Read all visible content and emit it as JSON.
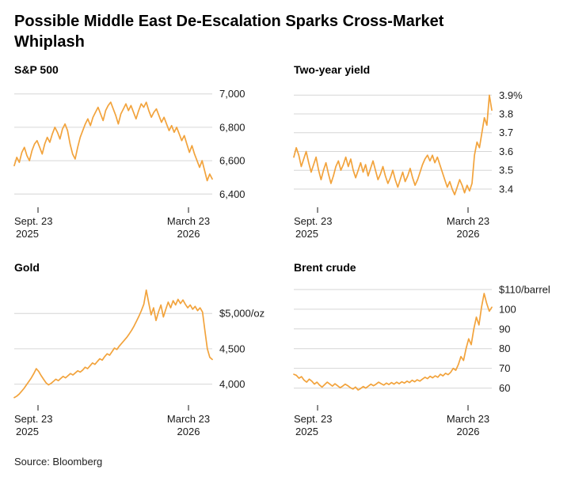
{
  "title": "Possible Middle East De-Escalation Sparks Cross-Market Whiplash",
  "source": "Source: Bloomberg",
  "colors": {
    "line": "#F2A33C",
    "grid": "#D6D6D6",
    "axis": "#1a1a1a"
  },
  "chart_data": [
    {
      "type": "line",
      "title": "S&P 500",
      "x_left": [
        "Sept. 23",
        "2025"
      ],
      "x_right": [
        "March 23",
        "2026"
      ],
      "ylim": [
        6340,
        7060
      ],
      "yticks": [
        {
          "v": 7000,
          "label": "7,000"
        },
        {
          "v": 6800,
          "label": "6,800"
        },
        {
          "v": 6600,
          "label": "6,600"
        },
        {
          "v": 6400,
          "label": "6,400"
        }
      ],
      "values": [
        6570,
        6620,
        6590,
        6650,
        6680,
        6630,
        6600,
        6660,
        6700,
        6720,
        6680,
        6640,
        6700,
        6740,
        6710,
        6760,
        6800,
        6770,
        6730,
        6790,
        6820,
        6780,
        6700,
        6640,
        6610,
        6680,
        6740,
        6780,
        6820,
        6850,
        6810,
        6860,
        6890,
        6920,
        6880,
        6840,
        6900,
        6930,
        6950,
        6910,
        6870,
        6820,
        6880,
        6910,
        6940,
        6900,
        6930,
        6890,
        6850,
        6900,
        6940,
        6920,
        6950,
        6900,
        6860,
        6890,
        6910,
        6870,
        6830,
        6860,
        6820,
        6780,
        6810,
        6770,
        6800,
        6760,
        6720,
        6750,
        6700,
        6650,
        6690,
        6640,
        6600,
        6560,
        6600,
        6540,
        6480,
        6520,
        6490
      ]
    },
    {
      "type": "line",
      "title": "Two-year yield",
      "x_left": [
        "Sept. 23",
        "2025"
      ],
      "x_right": [
        "March 23",
        "2026"
      ],
      "ylim": [
        3.32,
        3.96
      ],
      "yticks": [
        {
          "v": 3.9,
          "label": "3.9%"
        },
        {
          "v": 3.8,
          "label": "3.8"
        },
        {
          "v": 3.7,
          "label": "3.7"
        },
        {
          "v": 3.6,
          "label": "3.6"
        },
        {
          "v": 3.5,
          "label": "3.5"
        },
        {
          "v": 3.4,
          "label": "3.4"
        }
      ],
      "values": [
        3.57,
        3.62,
        3.58,
        3.52,
        3.56,
        3.6,
        3.54,
        3.49,
        3.53,
        3.57,
        3.5,
        3.45,
        3.5,
        3.54,
        3.48,
        3.43,
        3.47,
        3.52,
        3.55,
        3.5,
        3.53,
        3.57,
        3.52,
        3.56,
        3.5,
        3.46,
        3.5,
        3.54,
        3.49,
        3.53,
        3.47,
        3.51,
        3.55,
        3.5,
        3.45,
        3.48,
        3.52,
        3.47,
        3.43,
        3.46,
        3.5,
        3.45,
        3.41,
        3.45,
        3.49,
        3.44,
        3.47,
        3.51,
        3.46,
        3.42,
        3.45,
        3.49,
        3.53,
        3.56,
        3.58,
        3.55,
        3.58,
        3.54,
        3.57,
        3.53,
        3.49,
        3.45,
        3.41,
        3.44,
        3.4,
        3.37,
        3.41,
        3.45,
        3.42,
        3.38,
        3.42,
        3.39,
        3.43,
        3.58,
        3.65,
        3.62,
        3.7,
        3.78,
        3.74,
        3.9,
        3.82
      ]
    },
    {
      "type": "line",
      "title": "Gold",
      "x_left": [
        "Sept. 23",
        "2025"
      ],
      "x_right": [
        "March 23",
        "2026"
      ],
      "ylim": [
        3750,
        5450
      ],
      "yticks": [
        {
          "v": 5000,
          "label": "$5,000/oz"
        },
        {
          "v": 4500,
          "label": "4,500"
        },
        {
          "v": 4000,
          "label": "4,000"
        }
      ],
      "values": [
        3810,
        3830,
        3860,
        3900,
        3940,
        3990,
        4040,
        4090,
        4150,
        4220,
        4180,
        4120,
        4070,
        4020,
        3990,
        4010,
        4040,
        4070,
        4050,
        4080,
        4110,
        4090,
        4120,
        4150,
        4130,
        4160,
        4190,
        4170,
        4200,
        4240,
        4220,
        4260,
        4300,
        4280,
        4320,
        4360,
        4340,
        4390,
        4430,
        4410,
        4460,
        4510,
        4490,
        4540,
        4580,
        4620,
        4660,
        4710,
        4760,
        4820,
        4890,
        4960,
        5040,
        5130,
        5330,
        5150,
        4980,
        5080,
        4900,
        5020,
        5120,
        4950,
        5060,
        5160,
        5080,
        5180,
        5120,
        5200,
        5140,
        5190,
        5130,
        5080,
        5120,
        5060,
        5100,
        5040,
        5080,
        5020,
        4760,
        4500,
        4380,
        4350
      ]
    },
    {
      "type": "line",
      "title": "Brent crude",
      "x_left": [
        "Sept. 23",
        "2025"
      ],
      "x_right": [
        "March 23",
        "2026"
      ],
      "ylim": [
        53,
        114
      ],
      "yticks": [
        {
          "v": 110,
          "label": "$110/barrel"
        },
        {
          "v": 100,
          "label": "100"
        },
        {
          "v": 90,
          "label": "90"
        },
        {
          "v": 80,
          "label": "80"
        },
        {
          "v": 70,
          "label": "70"
        },
        {
          "v": 60,
          "label": "60"
        }
      ],
      "values": [
        67,
        66.5,
        65,
        65.8,
        64,
        63,
        64.5,
        63.5,
        62,
        63,
        61.5,
        60.5,
        61.8,
        63,
        62,
        61,
        62.2,
        61.2,
        60.2,
        61,
        62,
        61.2,
        60.2,
        59.5,
        60.5,
        59,
        59.8,
        60.8,
        60,
        61,
        62,
        61.2,
        62,
        63,
        62.2,
        61.5,
        62.5,
        61.8,
        62.8,
        62,
        63,
        62.2,
        63.2,
        62.5,
        63.5,
        62.8,
        64,
        63.2,
        64.2,
        63.5,
        64.5,
        65.5,
        64.8,
        66,
        65.2,
        66.2,
        65.5,
        67,
        66.2,
        67.5,
        66.8,
        68,
        70,
        69,
        72,
        76,
        74,
        80,
        85,
        82,
        90,
        96,
        92,
        101,
        108,
        103,
        99,
        101
      ]
    }
  ]
}
